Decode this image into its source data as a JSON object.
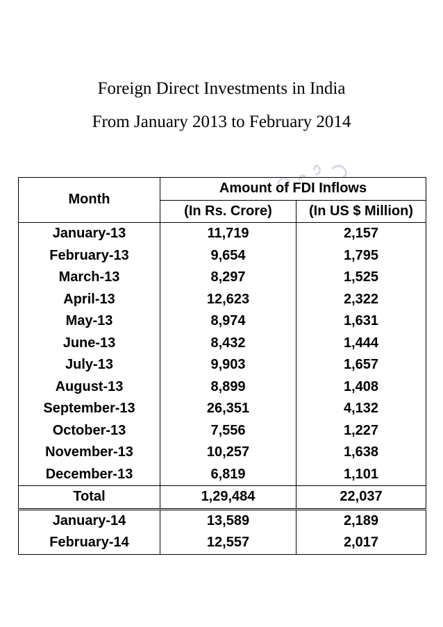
{
  "title": {
    "line1": "Foreign Direct Investments in India",
    "line2": "From January 2013 to February 2014"
  },
  "table": {
    "header": {
      "month": "Month",
      "amount": "Amount of FDI Inflows",
      "inr": "(In Rs. Crore)",
      "usd": "(In US $ Million)"
    },
    "rows_2013": [
      {
        "month": "January-13",
        "inr": "11,719",
        "usd": "2,157"
      },
      {
        "month": "February-13",
        "inr": "9,654",
        "usd": "1,795"
      },
      {
        "month": "March-13",
        "inr": "8,297",
        "usd": "1,525"
      },
      {
        "month": "April-13",
        "inr": "12,623",
        "usd": "2,322"
      },
      {
        "month": "May-13",
        "inr": "8,974",
        "usd": "1,631"
      },
      {
        "month": "June-13",
        "inr": "8,432",
        "usd": "1,444"
      },
      {
        "month": "July-13",
        "inr": "9,903",
        "usd": "1,657"
      },
      {
        "month": "August-13",
        "inr": "8,899",
        "usd": "1,408"
      },
      {
        "month": "September-13",
        "inr": "26,351",
        "usd": "4,132"
      },
      {
        "month": "October-13",
        "inr": "7,556",
        "usd": "1,227"
      },
      {
        "month": "November-13",
        "inr": "10,257",
        "usd": "1,638"
      },
      {
        "month": "December-13",
        "inr": "6,819",
        "usd": "1,101"
      }
    ],
    "total": {
      "month": "Total",
      "inr": "1,29,484",
      "usd": "22,037"
    },
    "rows_2014": [
      {
        "month": "January-14",
        "inr": "13,589",
        "usd": "2,189"
      },
      {
        "month": "February-14",
        "inr": "12,557",
        "usd": "2,017"
      }
    ]
  },
  "colors": {
    "text": "#000000",
    "background": "#ffffff",
    "watermark": "#cfd8e6"
  }
}
